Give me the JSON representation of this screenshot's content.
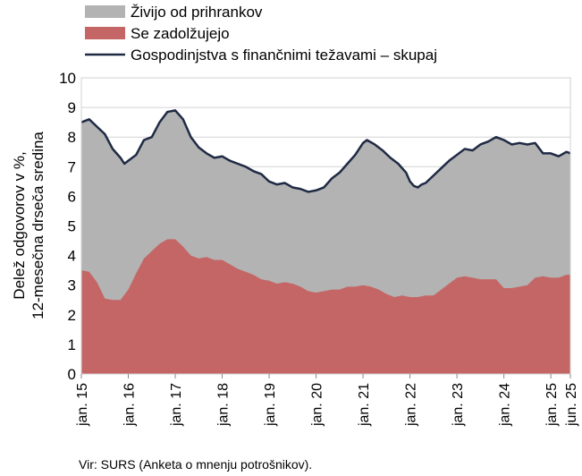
{
  "chart_data": {
    "type": "area",
    "title": "",
    "ylabel": [
      "Delež odgovorov v %,",
      "12-mesečna  drseča sredina"
    ],
    "xlabel": "",
    "ylim": [
      0,
      10
    ],
    "y_ticks": [
      0,
      1,
      2,
      3,
      4,
      5,
      6,
      7,
      8,
      9,
      10
    ],
    "x_tick_labels": [
      "jan. 15",
      "jan. 16",
      "jan. 17",
      "jan. 18",
      "jan. 19",
      "jan. 20",
      "jan. 21",
      "jan. 22",
      "jan. 23",
      "jan. 24",
      "jan. 25",
      "jun. 25"
    ],
    "x_tick_months": [
      0,
      12,
      24,
      36,
      48,
      60,
      72,
      84,
      96,
      108,
      120,
      125
    ],
    "month_count": 126,
    "grid": true,
    "legend_position": "top-left",
    "series": [
      {
        "name": "Živijo od prihrankov",
        "kind": "area",
        "color": "#b3b3b3",
        "points": [
          [
            0,
            8.5
          ],
          [
            2,
            8.6
          ],
          [
            4,
            8.35
          ],
          [
            6,
            8.1
          ],
          [
            8,
            7.6
          ],
          [
            10,
            7.3
          ],
          [
            11,
            7.1
          ],
          [
            12,
            7.2
          ],
          [
            14,
            7.4
          ],
          [
            16,
            7.9
          ],
          [
            18,
            8.0
          ],
          [
            20,
            8.5
          ],
          [
            22,
            8.85
          ],
          [
            24,
            8.9
          ],
          [
            26,
            8.6
          ],
          [
            28,
            8.0
          ],
          [
            30,
            7.65
          ],
          [
            32,
            7.45
          ],
          [
            34,
            7.3
          ],
          [
            36,
            7.35
          ],
          [
            38,
            7.2
          ],
          [
            40,
            7.1
          ],
          [
            42,
            7.0
          ],
          [
            44,
            6.85
          ],
          [
            46,
            6.75
          ],
          [
            48,
            6.5
          ],
          [
            50,
            6.4
          ],
          [
            52,
            6.45
          ],
          [
            54,
            6.3
          ],
          [
            56,
            6.25
          ],
          [
            58,
            6.15
          ],
          [
            60,
            6.2
          ],
          [
            62,
            6.3
          ],
          [
            64,
            6.6
          ],
          [
            66,
            6.8
          ],
          [
            68,
            7.1
          ],
          [
            70,
            7.4
          ],
          [
            72,
            7.8
          ],
          [
            73,
            7.9
          ],
          [
            75,
            7.75
          ],
          [
            77,
            7.55
          ],
          [
            79,
            7.3
          ],
          [
            81,
            7.1
          ],
          [
            83,
            6.8
          ],
          [
            84,
            6.5
          ],
          [
            85,
            6.35
          ],
          [
            86,
            6.3
          ],
          [
            87,
            6.4
          ],
          [
            88,
            6.45
          ],
          [
            90,
            6.7
          ],
          [
            92,
            6.95
          ],
          [
            94,
            7.2
          ],
          [
            96,
            7.4
          ],
          [
            98,
            7.6
          ],
          [
            100,
            7.55
          ],
          [
            102,
            7.75
          ],
          [
            104,
            7.85
          ],
          [
            106,
            8.0
          ],
          [
            108,
            7.9
          ],
          [
            110,
            7.75
          ],
          [
            112,
            7.8
          ],
          [
            114,
            7.75
          ],
          [
            116,
            7.8
          ],
          [
            118,
            7.45
          ],
          [
            120,
            7.45
          ],
          [
            122,
            7.35
          ],
          [
            124,
            7.5
          ],
          [
            125,
            7.45
          ]
        ]
      },
      {
        "name": "Se zadolžujejo",
        "kind": "area",
        "color": "#c56666",
        "points": [
          [
            0,
            3.5
          ],
          [
            2,
            3.45
          ],
          [
            4,
            3.1
          ],
          [
            6,
            2.55
          ],
          [
            8,
            2.5
          ],
          [
            10,
            2.5
          ],
          [
            12,
            2.85
          ],
          [
            14,
            3.4
          ],
          [
            16,
            3.9
          ],
          [
            18,
            4.15
          ],
          [
            20,
            4.4
          ],
          [
            22,
            4.55
          ],
          [
            24,
            4.55
          ],
          [
            26,
            4.3
          ],
          [
            28,
            4.0
          ],
          [
            30,
            3.9
          ],
          [
            32,
            3.95
          ],
          [
            34,
            3.85
          ],
          [
            36,
            3.85
          ],
          [
            38,
            3.7
          ],
          [
            40,
            3.55
          ],
          [
            42,
            3.45
          ],
          [
            44,
            3.35
          ],
          [
            46,
            3.2
          ],
          [
            48,
            3.15
          ],
          [
            50,
            3.05
          ],
          [
            52,
            3.1
          ],
          [
            54,
            3.05
          ],
          [
            56,
            2.95
          ],
          [
            58,
            2.8
          ],
          [
            60,
            2.75
          ],
          [
            62,
            2.8
          ],
          [
            64,
            2.85
          ],
          [
            66,
            2.85
          ],
          [
            68,
            2.95
          ],
          [
            70,
            2.95
          ],
          [
            72,
            3.0
          ],
          [
            74,
            2.95
          ],
          [
            76,
            2.85
          ],
          [
            78,
            2.7
          ],
          [
            80,
            2.6
          ],
          [
            82,
            2.65
          ],
          [
            84,
            2.6
          ],
          [
            86,
            2.6
          ],
          [
            88,
            2.65
          ],
          [
            90,
            2.65
          ],
          [
            92,
            2.85
          ],
          [
            94,
            3.05
          ],
          [
            96,
            3.25
          ],
          [
            98,
            3.3
          ],
          [
            100,
            3.25
          ],
          [
            102,
            3.2
          ],
          [
            104,
            3.2
          ],
          [
            106,
            3.2
          ],
          [
            108,
            2.9
          ],
          [
            110,
            2.9
          ],
          [
            112,
            2.95
          ],
          [
            114,
            3.0
          ],
          [
            116,
            3.25
          ],
          [
            118,
            3.3
          ],
          [
            120,
            3.25
          ],
          [
            122,
            3.25
          ],
          [
            124,
            3.35
          ],
          [
            125,
            3.35
          ]
        ]
      },
      {
        "name": "Gospodinjstva s finančnimi težavami – skupaj",
        "kind": "line",
        "color": "#1f2a44",
        "points": [
          [
            0,
            8.5
          ],
          [
            2,
            8.6
          ],
          [
            4,
            8.35
          ],
          [
            6,
            8.1
          ],
          [
            8,
            7.6
          ],
          [
            10,
            7.3
          ],
          [
            11,
            7.1
          ],
          [
            12,
            7.2
          ],
          [
            14,
            7.4
          ],
          [
            16,
            7.9
          ],
          [
            18,
            8.0
          ],
          [
            20,
            8.5
          ],
          [
            22,
            8.85
          ],
          [
            24,
            8.9
          ],
          [
            26,
            8.6
          ],
          [
            28,
            8.0
          ],
          [
            30,
            7.65
          ],
          [
            32,
            7.45
          ],
          [
            34,
            7.3
          ],
          [
            36,
            7.35
          ],
          [
            38,
            7.2
          ],
          [
            40,
            7.1
          ],
          [
            42,
            7.0
          ],
          [
            44,
            6.85
          ],
          [
            46,
            6.75
          ],
          [
            48,
            6.5
          ],
          [
            50,
            6.4
          ],
          [
            52,
            6.45
          ],
          [
            54,
            6.3
          ],
          [
            56,
            6.25
          ],
          [
            58,
            6.15
          ],
          [
            60,
            6.2
          ],
          [
            62,
            6.3
          ],
          [
            64,
            6.6
          ],
          [
            66,
            6.8
          ],
          [
            68,
            7.1
          ],
          [
            70,
            7.4
          ],
          [
            72,
            7.8
          ],
          [
            73,
            7.9
          ],
          [
            75,
            7.75
          ],
          [
            77,
            7.55
          ],
          [
            79,
            7.3
          ],
          [
            81,
            7.1
          ],
          [
            83,
            6.8
          ],
          [
            84,
            6.5
          ],
          [
            85,
            6.35
          ],
          [
            86,
            6.3
          ],
          [
            87,
            6.4
          ],
          [
            88,
            6.45
          ],
          [
            90,
            6.7
          ],
          [
            92,
            6.95
          ],
          [
            94,
            7.2
          ],
          [
            96,
            7.4
          ],
          [
            98,
            7.6
          ],
          [
            100,
            7.55
          ],
          [
            102,
            7.75
          ],
          [
            104,
            7.85
          ],
          [
            106,
            8.0
          ],
          [
            108,
            7.9
          ],
          [
            110,
            7.75
          ],
          [
            112,
            7.8
          ],
          [
            114,
            7.75
          ],
          [
            116,
            7.8
          ],
          [
            118,
            7.45
          ],
          [
            120,
            7.45
          ],
          [
            122,
            7.35
          ],
          [
            124,
            7.5
          ],
          [
            125,
            7.45
          ]
        ]
      }
    ],
    "source": "Vir: SURS (Anketa o mnenju potrošnikov)."
  }
}
